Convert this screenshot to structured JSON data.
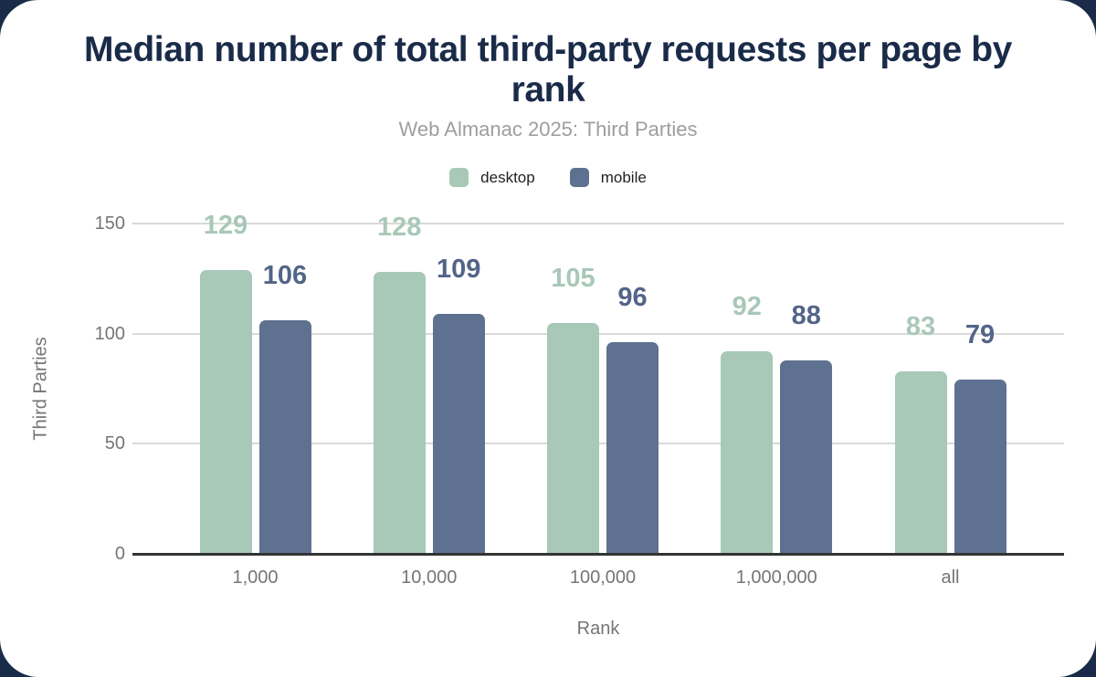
{
  "colors": {
    "title_navy": "#1a2b49",
    "subtitle_gray": "#9e9e9e",
    "axis_text_gray": "#757575",
    "gridline_gray": "#d9d9d9",
    "baseline_dark": "#333333",
    "canvas_background": "#ffffff",
    "corner_backdrop_navy": "#1a2b49"
  },
  "chart_data": {
    "type": "bar",
    "title": "Median number of total third-party requests per page by rank",
    "subtitle": "Web Almanac 2025: Third Parties",
    "categories": [
      "1,000",
      "10,000",
      "100,000",
      "1,000,000",
      "all"
    ],
    "series": [
      {
        "name": "desktop",
        "color": "#a8c8b8",
        "label_color": "#a8c8b8",
        "values": [
          129,
          128,
          105,
          92,
          83
        ]
      },
      {
        "name": "mobile",
        "color": "#5f7190",
        "label_color": "#536488",
        "values": [
          106,
          109,
          96,
          88,
          79
        ]
      }
    ],
    "xlabel": "Rank",
    "ylabel": "Third Parties",
    "y_ticks": [
      0,
      50,
      100,
      150
    ],
    "ylim": [
      0,
      150
    ],
    "grid": true,
    "legend_position": "top-center",
    "value_labels": true
  }
}
